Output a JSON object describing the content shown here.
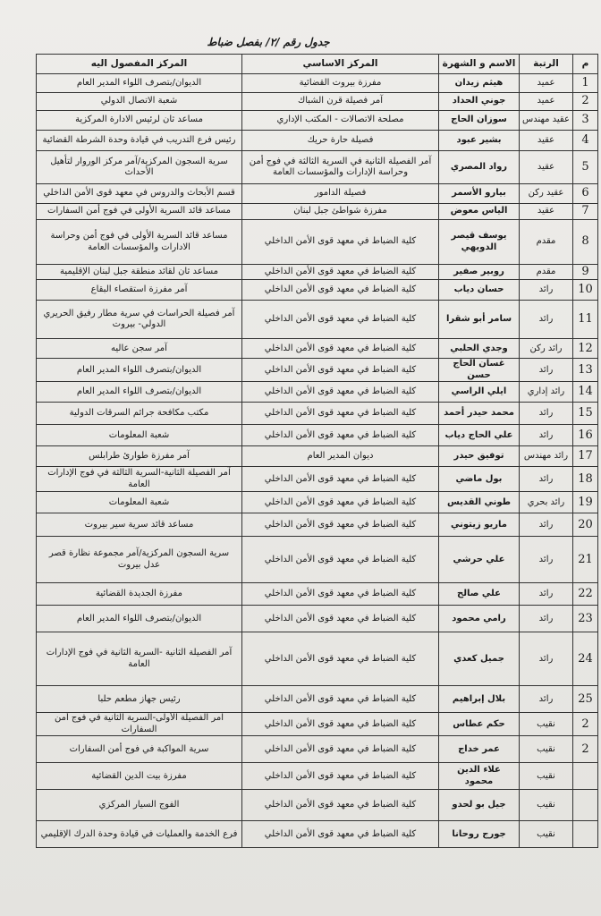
{
  "header": {
    "title": "جدول رقم /٢/ بفصل ضباط"
  },
  "table": {
    "columns": [
      "م",
      "الرتبة",
      "الاسم و الشهرة",
      "المركز الاساسي",
      "المركز المفصول اليه"
    ],
    "rows": [
      [
        "1",
        "عميد",
        "هيثم زيدان",
        "مفرزة بيروت القضائية",
        "الديوان/بتصرف اللواء المدير العام"
      ],
      [
        "2",
        "عميد",
        "جوني الحداد",
        "آمر فصيلة قرن الشباك",
        "شعبة الاتصال الدولي"
      ],
      [
        "3",
        "عقيد مهندس",
        "سوزان الحاج",
        "مصلحة الاتصالات - المكتب الإداري",
        "مساعد ثان لرئيس الادارة المركزية"
      ],
      [
        "4",
        "عقيد",
        "بشير عبود",
        "فصيلة حارة حريك",
        "رئيس فرع التدريب في قيادة وحدة الشرطة القضائية"
      ],
      [
        "5",
        "عقيد",
        "رواد المصري",
        "آمر الفصيلة الثانية في السرية الثالثة في فوج أمن وحراسة الإدارات والمؤسسات العامة",
        "سرية السجون المركزية/آمر مركز الوروار لتأهيل الأحداث"
      ],
      [
        "6",
        "عقيد ركن",
        "بيارو الأسمر",
        "فصيلة الدامور",
        "قسم الأبحاث والدروس في معهد قوى الأمن الداخلي"
      ],
      [
        "7",
        "عقيد",
        "الياس معوض",
        "مفرزة شواطئ جبل لبنان",
        "مساعد قائد السرية الأولى في فوج أمن السفارات"
      ],
      [
        "8",
        "مقدم",
        "يوسف قيصر الدويهي",
        "كلية الضباط في معهد قوى الأمن الداخلي",
        "مساعد قائد السرية الأولى في فوج أمن وحراسة الادارات والمؤسسات العامة"
      ],
      [
        "9",
        "مقدم",
        "روبير صفير",
        "كلية الضباط في معهد قوى الأمن الداخلي",
        "مساعد ثان لقائد منطقة جبل لبنان الإقليمية"
      ],
      [
        "10",
        "رائد",
        "حسان دياب",
        "كلية الضباط في معهد قوى الأمن الداخلي",
        "آمر مفرزة استقصاء البقاع"
      ],
      [
        "11",
        "رائد",
        "سامر أبو شقرا",
        "كلية الضباط في معهد قوى الأمن الداخلي",
        "آمر فصيلة الحراسات في سرية مطار رفيق الحريري الدولي- بيروت"
      ],
      [
        "12",
        "رائد ركن",
        "وجدي الحلبي",
        "كلية الضباط في معهد قوى الأمن الداخلي",
        "آمر سجن عاليه"
      ],
      [
        "13",
        "رائد",
        "غسان الحاج حسن",
        "كلية الضباط في معهد قوى الأمن الداخلي",
        "الديوان/بتصرف اللواء المدير العام"
      ],
      [
        "14",
        "رائد إداري",
        "ايلي الراسي",
        "كلية الضباط في معهد قوى الأمن الداخلي",
        "الديوان/بتصرف اللواء المدير العام"
      ],
      [
        "15",
        "رائد",
        "محمد حيدر أحمد",
        "كلية الضباط في معهد قوى الأمن الداخلي",
        "مكتب مكافحة جرائم السرقات الدولية"
      ],
      [
        "16",
        "رائد",
        "علي الحاج دياب",
        "كلية الضباط في معهد قوى الأمن الداخلي",
        "شعبة المعلومات"
      ],
      [
        "17",
        "رائد مهندس",
        "توفيق حيدر",
        "ديوان المدير العام",
        "آمر مفرزة طوارئ طرابلس"
      ],
      [
        "18",
        "رائد",
        "بول ماضي",
        "كلية الضباط في معهد قوى الأمن الداخلي",
        "آمر الفصيلة الثانية-السرية الثالثة في فوج الإدارات العامة"
      ],
      [
        "19",
        "رائد بحري",
        "طوني القديس",
        "كلية الضباط في معهد قوى الأمن الداخلي",
        "شعبة المعلومات"
      ],
      [
        "20",
        "رائد",
        "ماريو زيتوني",
        "كلية الضباط في معهد قوى الأمن الداخلي",
        "مساعد قائد سرية سير بيروت"
      ],
      [
        "21",
        "رائد",
        "علي حرشي",
        "كلية الضباط في معهد قوى الأمن الداخلي",
        "سرية السجون المركزية/آمر مجموعة نظارة قصر عدل بيروت"
      ],
      [
        "22",
        "رائد",
        "علي صالح",
        "كلية الضباط في معهد قوى الأمن الداخلي",
        "مفرزة الجديدة القضائية"
      ],
      [
        "23",
        "رائد",
        "رامي محمود",
        "كلية الضباط في معهد قوى الأمن الداخلي",
        "الديوان/بتصرف اللواء المدير العام"
      ],
      [
        "24",
        "رائد",
        "جميل كعدي",
        "كلية الضباط في معهد قوى الأمن الداخلي",
        "آمر الفصيلة الثانية -السرية الثانية في فوج الإدارات العامة"
      ],
      [
        "25",
        "رائد",
        "بلال إبراهيم",
        "كلية الضباط في معهد قوى الأمن الداخلي",
        "رئيس جهاز مطعم حلبا"
      ],
      [
        "2",
        "نقيب",
        "حكم عطاس",
        "كلية الضباط في معهد قوى الأمن الداخلي",
        "آمر الفصيلة الأولى-السرية الثانية في فوج أمن السفارات"
      ],
      [
        "2",
        "نقيب",
        "عمر خداج",
        "كلية الضباط في معهد قوى الأمن الداخلي",
        "سرية المواكبة في فوج أمن السفارات"
      ],
      [
        null,
        "نقيب",
        "علاء الدين محمود",
        "كلية الضباط في معهد قوى الأمن الداخلي",
        "مفرزة بيت الدين القضائية"
      ],
      [
        null,
        "نقيب",
        "جيل بو لحدو",
        "كلية الضباط في معهد قوى الأمن الداخلي",
        "الفوج السيار المركزي"
      ],
      [
        null,
        "نقيب",
        "جورج روحانا",
        "كلية الضباط في معهد قوى الأمن الداخلي",
        "فرع الخدمة والعمليات في قيادة وحدة الدرك الإقليمي"
      ]
    ]
  }
}
